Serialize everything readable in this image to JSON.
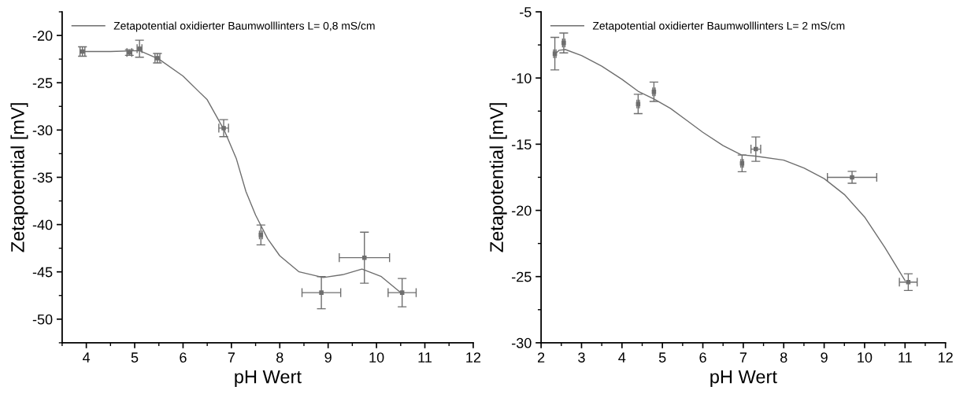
{
  "chart_data": [
    {
      "type": "scatter",
      "xlabel": "pH Wert",
      "ylabel": "Zetapotential [mV]",
      "xlim": [
        3.5,
        12
      ],
      "ylim": [
        -52.5,
        -17.5
      ],
      "xticks": [
        4,
        5,
        6,
        7,
        8,
        9,
        10,
        11,
        12
      ],
      "yticks": [
        -50,
        -45,
        -40,
        -35,
        -30,
        -25,
        -20
      ],
      "legend": "top left",
      "grid": false,
      "series": [
        {
          "color": "#6e6e6e",
          "marker": "square",
          "x": [
            3.92,
            4.89,
            5.1,
            5.47,
            6.84,
            7.61,
            8.86,
            9.75,
            10.53
          ],
          "values": [
            -21.7,
            -21.8,
            -21.4,
            -22.4,
            -29.8,
            -41.1,
            -47.2,
            -43.5,
            -47.2
          ],
          "errors": [
            0.5,
            0.3,
            0.9,
            0.5,
            0.9,
            1.05,
            1.7,
            2.7,
            1.5
          ],
          "xerrors": [
            0.05,
            0.05,
            0.05,
            0.05,
            0.1,
            0.03,
            0.4,
            0.52,
            0.29
          ]
        },
        {
          "type": "line",
          "name": "Zetapotential oxidierter Baumwolllinters L= 0,8 mS/cm",
          "color": "#6e6e6e",
          "line_style": "solid",
          "x": [
            3.9,
            4.5,
            5.1,
            5.5,
            6.0,
            6.5,
            6.85,
            7.1,
            7.3,
            7.5,
            7.75,
            8.0,
            8.4,
            8.9,
            9.3,
            9.7,
            10.1,
            10.5
          ],
          "values": [
            -21.7,
            -21.7,
            -21.6,
            -22.5,
            -24.3,
            -26.8,
            -30.0,
            -33.0,
            -36.5,
            -39.0,
            -41.5,
            -43.3,
            -45.0,
            -45.6,
            -45.3,
            -44.7,
            -45.5,
            -47.2
          ]
        }
      ]
    },
    {
      "type": "scatter",
      "xlabel": "pH Wert",
      "ylabel": "Zetapotential [mV]",
      "xlim": [
        2,
        12
      ],
      "ylim": [
        -30,
        -5
      ],
      "xticks": [
        2,
        3,
        4,
        5,
        6,
        7,
        8,
        9,
        10,
        11,
        12
      ],
      "yticks": [
        -30,
        -25,
        -20,
        -15,
        -10,
        -5
      ],
      "legend": "top left",
      "grid": false,
      "series": [
        {
          "color": "#6e6e6e",
          "marker": "square",
          "x": [
            2.34,
            2.56,
            4.4,
            4.79,
            6.97,
            7.31,
            9.69,
            11.08
          ],
          "values": [
            -8.16,
            -7.35,
            -11.96,
            -11.04,
            -16.45,
            -15.37,
            -17.5,
            -25.42
          ],
          "errors": [
            1.23,
            0.75,
            0.73,
            0.73,
            0.63,
            0.92,
            0.45,
            0.63
          ],
          "xerrors": [
            0.03,
            0.03,
            0.03,
            0.03,
            0.03,
            0.12,
            0.61,
            0.22
          ]
        },
        {
          "type": "line",
          "name": "Zetapotential oxidierter Baumwolllinters L= 2 mS/cm",
          "color": "#6e6e6e",
          "line_style": "solid",
          "x": [
            2.34,
            2.45,
            2.6,
            3.0,
            3.5,
            4.0,
            4.4,
            4.8,
            5.2,
            5.6,
            6.0,
            6.5,
            6.95,
            7.3,
            8.0,
            8.5,
            9.0,
            9.5,
            10.0,
            10.5,
            11.0
          ],
          "values": [
            -8.2,
            -7.9,
            -7.85,
            -8.3,
            -9.1,
            -10.1,
            -11.0,
            -11.6,
            -12.3,
            -13.2,
            -14.1,
            -15.1,
            -15.8,
            -15.9,
            -16.2,
            -16.8,
            -17.6,
            -18.8,
            -20.5,
            -22.8,
            -25.3
          ]
        }
      ]
    }
  ]
}
